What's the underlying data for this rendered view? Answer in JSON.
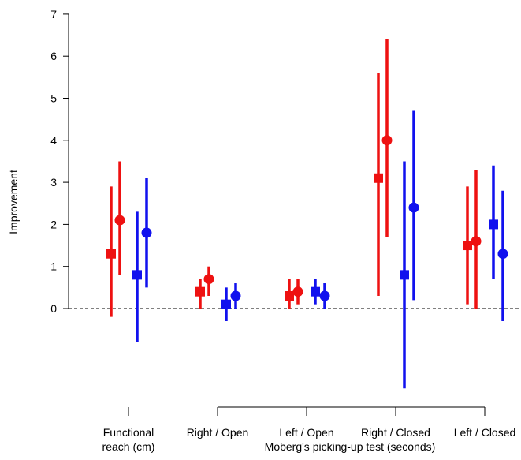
{
  "chart_data": {
    "type": "scatter",
    "variant": "point-with-interval",
    "title": "",
    "ylabel": "Improvement",
    "ylim": [
      -2,
      7
    ],
    "yticks": [
      0,
      1,
      2,
      3,
      4,
      5,
      6,
      7
    ],
    "reference_line": {
      "y": 0,
      "style": "dashed"
    },
    "grid": false,
    "legend": "none",
    "categories": [
      {
        "lines": [
          "Functional",
          "reach (cm)"
        ]
      },
      {
        "lines": [
          "Right / Open"
        ]
      },
      {
        "lines": [
          "Left / Open"
        ]
      },
      {
        "lines": [
          "Right / Closed"
        ]
      },
      {
        "lines": [
          "Left / Closed"
        ]
      }
    ],
    "group_label": "Moberg's picking-up test (seconds)",
    "group_span": [
      1,
      4
    ],
    "series": [
      {
        "color": "#ee1111",
        "marker": "square",
        "points": [
          {
            "est": 1.3,
            "lo": -0.2,
            "hi": 2.9
          },
          {
            "est": 0.4,
            "lo": 0.0,
            "hi": 0.7
          },
          {
            "est": 0.3,
            "lo": 0.0,
            "hi": 0.7
          },
          {
            "est": 3.1,
            "lo": 0.3,
            "hi": 5.6
          },
          {
            "est": 1.5,
            "lo": 0.1,
            "hi": 2.9
          }
        ]
      },
      {
        "color": "#ee1111",
        "marker": "circle",
        "points": [
          {
            "est": 2.1,
            "lo": 0.8,
            "hi": 3.5
          },
          {
            "est": 0.7,
            "lo": 0.3,
            "hi": 1.0
          },
          {
            "est": 0.4,
            "lo": 0.1,
            "hi": 0.7
          },
          {
            "est": 4.0,
            "lo": 1.7,
            "hi": 6.4
          },
          {
            "est": 1.6,
            "lo": 0.0,
            "hi": 3.3
          }
        ]
      },
      {
        "color": "#1111ee",
        "marker": "square",
        "points": [
          {
            "est": 0.8,
            "lo": -0.8,
            "hi": 2.3
          },
          {
            "est": 0.1,
            "lo": -0.3,
            "hi": 0.5
          },
          {
            "est": 0.4,
            "lo": 0.1,
            "hi": 0.7
          },
          {
            "est": 0.8,
            "lo": -1.9,
            "hi": 3.5
          },
          {
            "est": 2.0,
            "lo": 0.7,
            "hi": 3.4
          }
        ]
      },
      {
        "color": "#1111ee",
        "marker": "circle",
        "points": [
          {
            "est": 1.8,
            "lo": 0.5,
            "hi": 3.1
          },
          {
            "est": 0.3,
            "lo": 0.0,
            "hi": 0.6
          },
          {
            "est": 0.3,
            "lo": 0.0,
            "hi": 0.6
          },
          {
            "est": 2.4,
            "lo": 0.2,
            "hi": 4.7
          },
          {
            "est": 1.3,
            "lo": -0.3,
            "hi": 2.8
          }
        ]
      }
    ]
  }
}
